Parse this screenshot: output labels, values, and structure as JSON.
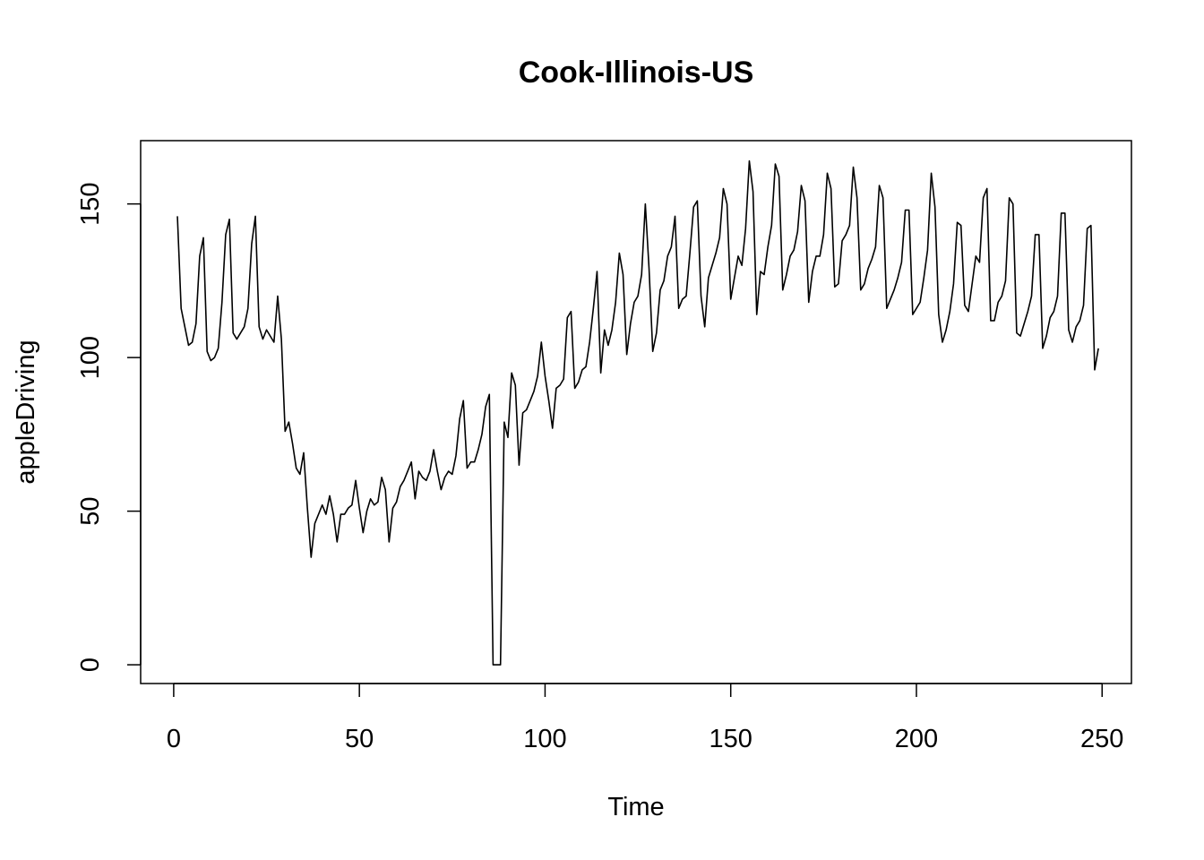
{
  "chart_data": {
    "type": "line",
    "title": "Cook-Illinois-US",
    "xlabel": "Time",
    "ylabel": "appleDriving",
    "xlim": [
      -8.9,
      257.9
    ],
    "ylim": [
      -6.1,
      170.6
    ],
    "x_ticks": [
      0,
      50,
      100,
      150,
      200,
      250
    ],
    "y_ticks": [
      0,
      50,
      100,
      150
    ],
    "grid": false,
    "legend": "none",
    "line_color": "#000000",
    "x_start": 1,
    "series": [
      {
        "values": [
          146,
          116,
          110,
          104,
          105,
          111,
          133,
          139,
          102,
          99,
          100,
          103,
          118,
          140,
          145,
          108,
          106,
          108,
          110,
          116,
          137,
          146,
          110,
          106,
          109,
          107,
          105,
          120,
          106,
          76,
          79,
          72,
          64,
          62,
          69,
          51,
          35,
          46,
          49,
          52,
          49,
          55,
          49,
          40,
          49,
          49,
          51,
          52,
          60,
          51,
          43,
          50,
          54,
          52,
          53,
          61,
          57,
          40,
          51,
          53,
          58,
          60,
          63,
          66,
          54,
          63,
          61,
          60,
          63,
          70,
          63,
          57,
          61,
          63,
          62,
          68,
          80,
          86,
          64,
          66,
          66,
          70,
          75,
          84,
          88,
          0,
          0,
          0,
          79,
          74,
          95,
          91,
          65,
          82,
          83,
          86,
          89,
          94,
          105,
          94,
          86,
          77,
          90,
          91,
          93,
          113,
          115,
          90,
          92,
          96,
          97,
          105,
          116,
          128,
          95,
          109,
          104,
          109,
          118,
          134,
          127,
          101,
          111,
          118,
          120,
          127,
          150,
          129,
          102,
          108,
          122,
          125,
          133,
          136,
          146,
          116,
          119,
          120,
          134,
          149,
          151,
          120,
          110,
          126,
          130,
          134,
          139,
          155,
          150,
          119,
          126,
          133,
          130,
          142,
          164,
          154,
          114,
          128,
          127,
          136,
          143,
          163,
          159,
          122,
          127,
          133,
          135,
          141,
          156,
          151,
          118,
          128,
          133,
          133,
          140,
          160,
          155,
          123,
          124,
          138,
          140,
          143,
          162,
          152,
          122,
          124,
          129,
          132,
          136,
          156,
          152,
          116,
          119,
          122,
          126,
          131,
          148,
          148,
          114,
          116,
          118,
          126,
          135,
          160,
          149,
          114,
          105,
          109,
          115,
          124,
          144,
          143,
          117,
          115,
          124,
          133,
          131,
          152,
          155,
          112,
          112,
          118,
          120,
          125,
          152,
          150,
          108,
          107,
          111,
          115,
          120,
          140,
          140,
          103,
          107,
          113,
          115,
          120,
          147,
          147,
          109,
          105,
          110,
          112,
          117,
          142,
          143,
          96,
          103
        ]
      }
    ]
  }
}
